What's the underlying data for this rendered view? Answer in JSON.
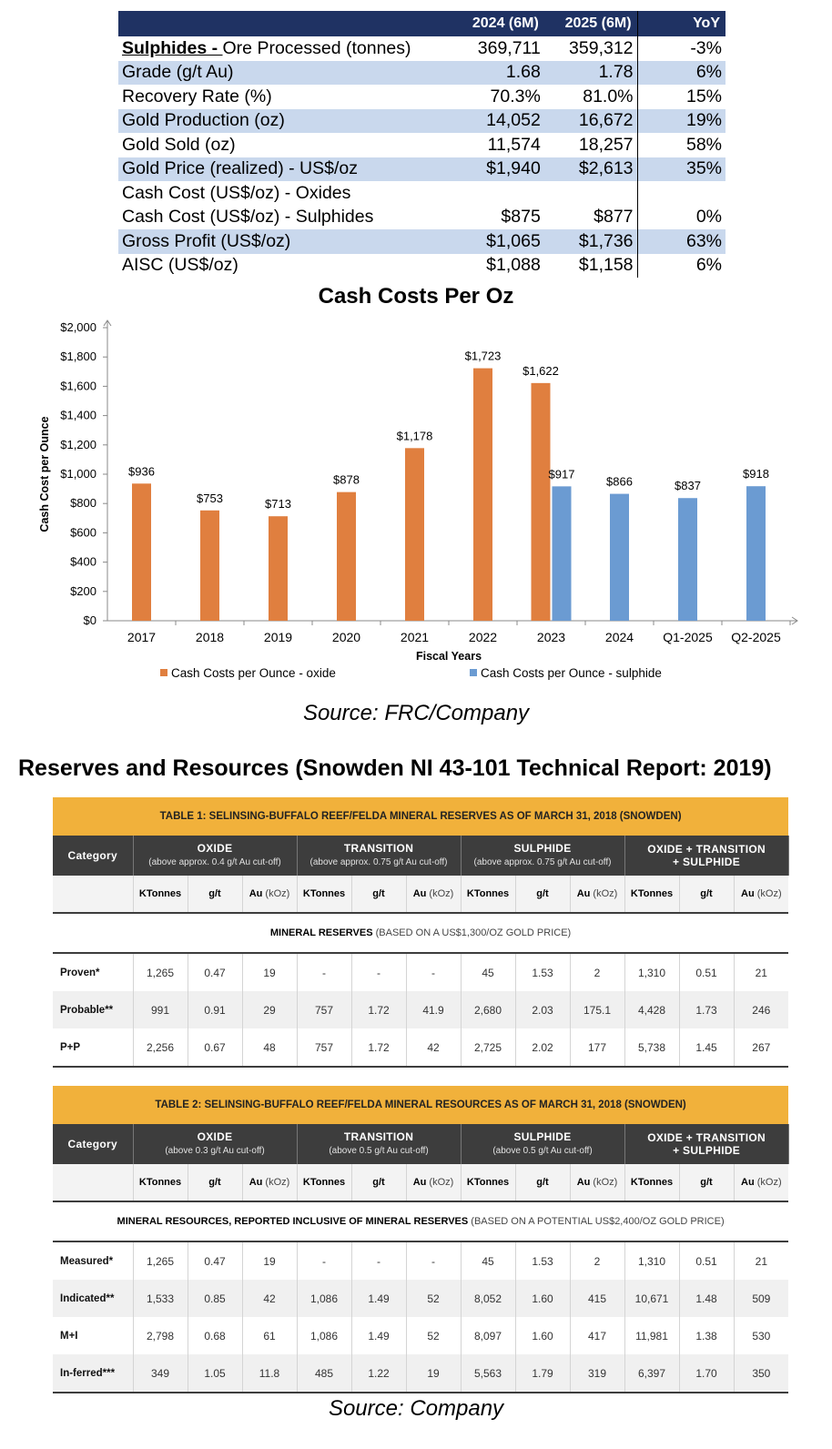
{
  "ops_table": {
    "headers": [
      "",
      "2024 (6M)",
      "2025 (6M)",
      "YoY"
    ],
    "lead_bold": "Sulphides - ",
    "rows": [
      {
        "label": "Ore Processed (tonnes)",
        "v2024": "369,711",
        "v2025": "359,312",
        "yoy": "-3%"
      },
      {
        "label": "Grade (g/t Au)",
        "v2024": "1.68",
        "v2025": "1.78",
        "yoy": "6%"
      },
      {
        "label": "Recovery Rate (%)",
        "v2024": "70.3%",
        "v2025": "81.0%",
        "yoy": "15%"
      },
      {
        "label": "Gold Production (oz)",
        "v2024": "14,052",
        "v2025": "16,672",
        "yoy": "19%"
      },
      {
        "label": "Gold Sold (oz)",
        "v2024": "11,574",
        "v2025": "18,257",
        "yoy": "58%"
      },
      {
        "label": "Gold Price (realized) - US$/oz",
        "v2024": "$1,940",
        "v2025": "$2,613",
        "yoy": "35%"
      },
      {
        "label": "Cash Cost (US$/oz) - Oxides",
        "v2024": "",
        "v2025": "",
        "yoy": ""
      },
      {
        "label": "Cash Cost (US$/oz) - Sulphides",
        "v2024": "$875",
        "v2025": "$877",
        "yoy": "0%"
      },
      {
        "label": "Gross Profit (US$/oz)",
        "v2024": "$1,065",
        "v2025": "$1,736",
        "yoy": "63%"
      },
      {
        "label": "AISC (US$/oz)",
        "v2024": "$1,088",
        "v2025": "$1,158",
        "yoy": "6%"
      }
    ]
  },
  "chart_title": "Cash Costs Per Oz",
  "chart_data": {
    "type": "bar",
    "title": "Cash Costs Per Oz",
    "xlabel": "Fiscal Years",
    "ylabel": "Cash Cost  per Ounce",
    "ylim": [
      0,
      2000
    ],
    "yticks": [
      "$0",
      "$200",
      "$400",
      "$600",
      "$800",
      "$1,000",
      "$1,200",
      "$1,400",
      "$1,600",
      "$1,800",
      "$2,000"
    ],
    "categories": [
      "2017",
      "2018",
      "2019",
      "2020",
      "2021",
      "2022",
      "2023",
      "2024",
      "Q1-2025",
      "Q2-2025"
    ],
    "series": [
      {
        "name": "Cash Costs per Ounce - oxide",
        "color": "#e07f3f",
        "values": [
          936,
          753,
          713,
          878,
          1178,
          1723,
          1622,
          null,
          null,
          null
        ],
        "labels": [
          "$936",
          "$753",
          "$713",
          "$878",
          "$1,178",
          "$1,723",
          "$1,622",
          "",
          "",
          ""
        ]
      },
      {
        "name": "Cash Costs per Ounce - sulphide",
        "color": "#6b9bd2",
        "values": [
          null,
          null,
          null,
          null,
          null,
          null,
          917,
          866,
          837,
          918
        ],
        "labels": [
          "",
          "",
          "",
          "",
          "",
          "",
          "$917",
          "$866",
          "$837",
          "$918"
        ]
      }
    ],
    "legend": "bottom"
  },
  "source1": "Source: FRC/Company",
  "reserves_heading": "Reserves and Resources (Snowden NI 43-101 Technical Report: 2019)",
  "colors": {
    "header_navy": "#1f3263",
    "band_blue": "#c9d8ed",
    "table_gold": "#f1b13b",
    "table_dark": "#3d3d3d"
  },
  "table1": {
    "title": "TABLE 1: SELINSING-BUFFALO REEF/FELDA MINERAL RESERVES AS OF MARCH 31, 2018 (SNOWDEN)",
    "category_label": "Category",
    "groups": [
      {
        "name": "OXIDE",
        "sub": "(above approx. 0.4 g/t Au cut-off)"
      },
      {
        "name": "TRANSITION",
        "sub": "(above approx. 0.75 g/t Au cut-off)"
      },
      {
        "name": "SULPHIDE",
        "sub": "(above approx. 0.75 g/t Au cut-off)"
      },
      {
        "name": "OXIDE + TRANSITION",
        "name2": "+ SULPHIDE"
      }
    ],
    "sub_headers": {
      "kt": "KTonnes",
      "gt": "g/t",
      "au": "Au",
      "au_unit": "(kOz)"
    },
    "section_bold": "MINERAL RESERVES",
    "section_note": " (BASED ON A US$1,300/OZ GOLD PRICE)",
    "rows": [
      {
        "label": "Proven*",
        "values": [
          "1,265",
          "0.47",
          "19",
          "-",
          "-",
          "-",
          "45",
          "1.53",
          "2",
          "1,310",
          "0.51",
          "21"
        ]
      },
      {
        "label": "Probable**",
        "values": [
          "991",
          "0.91",
          "29",
          "757",
          "1.72",
          "41.9",
          "2,680",
          "2.03",
          "175.1",
          "4,428",
          "1.73",
          "246"
        ]
      },
      {
        "label": "P+P",
        "values": [
          "2,256",
          "0.67",
          "48",
          "757",
          "1.72",
          "42",
          "2,725",
          "2.02",
          "177",
          "5,738",
          "1.45",
          "267"
        ]
      }
    ]
  },
  "table2": {
    "title": "TABLE 2: SELINSING-BUFFALO REEF/FELDA MINERAL RESOURCES AS OF MARCH 31, 2018 (SNOWDEN)",
    "category_label": "Category",
    "groups": [
      {
        "name": "OXIDE",
        "sub": "(above 0.3 g/t Au cut-off)"
      },
      {
        "name": "TRANSITION",
        "sub": "(above 0.5 g/t Au cut-off)"
      },
      {
        "name": "SULPHIDE",
        "sub": "(above 0.5 g/t Au cut-off)"
      },
      {
        "name": "OXIDE + TRANSITION",
        "name2": "+ SULPHIDE"
      }
    ],
    "sub_headers": {
      "kt": "KTonnes",
      "gt": "g/t",
      "au": "Au",
      "au_unit": "(kOz)"
    },
    "section_bold": "MINERAL RESOURCES, REPORTED INCLUSIVE OF MINERAL RESERVES",
    "section_note": " (BASED ON A POTENTIAL US$2,400/OZ GOLD PRICE)",
    "rows": [
      {
        "label": "Measured*",
        "values": [
          "1,265",
          "0.47",
          "19",
          "-",
          "-",
          "-",
          "45",
          "1.53",
          "2",
          "1,310",
          "0.51",
          "21"
        ]
      },
      {
        "label": "Indicated**",
        "values": [
          "1,533",
          "0.85",
          "42",
          "1,086",
          "1.49",
          "52",
          "8,052",
          "1.60",
          "415",
          "10,671",
          "1.48",
          "509"
        ]
      },
      {
        "label": "M+I",
        "values": [
          "2,798",
          "0.68",
          "61",
          "1,086",
          "1.49",
          "52",
          "8,097",
          "1.60",
          "417",
          "11,981",
          "1.38",
          "530"
        ]
      },
      {
        "label": "In-ferred***",
        "values": [
          "349",
          "1.05",
          "11.8",
          "485",
          "1.22",
          "19",
          "5,563",
          "1.79",
          "319",
          "6,397",
          "1.70",
          "350"
        ]
      }
    ]
  },
  "source2": "Source: Company"
}
